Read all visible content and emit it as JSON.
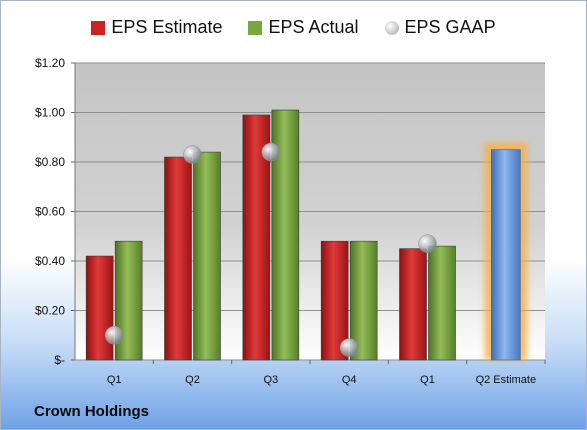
{
  "chart_data": {
    "type": "bar",
    "categories": [
      "Q1",
      "Q2",
      "Q3",
      "Q4",
      "Q1",
      "Q2 Estimate"
    ],
    "series": [
      {
        "name": "EPS Estimate",
        "values": [
          0.42,
          0.82,
          0.99,
          0.48,
          0.45,
          null
        ],
        "color": "#cc2222"
      },
      {
        "name": "EPS Actual",
        "values": [
          0.48,
          0.84,
          1.01,
          0.48,
          0.46,
          null
        ],
        "color": "#7aa640"
      },
      {
        "name": "EPS GAAP",
        "values": [
          0.1,
          0.83,
          0.84,
          0.05,
          0.47,
          null
        ],
        "color": "#b8bcc4",
        "marker": "circle"
      }
    ],
    "next_estimate": {
      "category": "Q2 Estimate",
      "value": 0.85,
      "color": "#6f9fe0",
      "glow": "#f5b04a"
    },
    "y_ticks": [
      0,
      0.2,
      0.4,
      0.6,
      0.8,
      1.0,
      1.2
    ],
    "y_tick_labels": [
      "$-",
      "$0.20",
      "$0.40",
      "$0.60",
      "$0.80",
      "$1.00",
      "$1.20"
    ],
    "ylim": [
      0,
      1.2
    ],
    "grid": true,
    "legend_position": "top"
  },
  "company": "Crown Holdings"
}
